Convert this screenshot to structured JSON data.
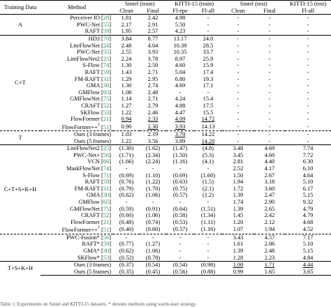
{
  "header": {
    "row1": [
      "Training Data",
      "Method",
      "Sintel (train)",
      "KITTI-15 (train)",
      "Sintel (test)",
      "KITTI-15 (test)"
    ],
    "row2": [
      "Clean",
      "Final",
      "Fl-epe",
      "Fl-all",
      "Clean",
      "Final",
      "Fl-all"
    ]
  },
  "groups": [
    {
      "name": "A",
      "rows": [
        {
          "m": "Perceiver IO",
          "c": "28",
          "v": [
            "1.81",
            "2.42",
            "4.98",
            "-",
            "-",
            "-",
            "-"
          ]
        },
        {
          "m": "PWC-Net",
          "c": "55",
          "v": [
            "2.17",
            "2.91",
            "5.50",
            "-",
            "-",
            "-",
            "-"
          ]
        },
        {
          "m": "RAFT",
          "c": "59",
          "v": [
            "1.95",
            "2.57",
            "4.23",
            "-",
            "-",
            "-",
            "-"
          ]
        }
      ]
    },
    {
      "name": "C+T",
      "rows": [
        {
          "m": "HD3",
          "c": "70",
          "v": [
            "3.84",
            "8.77",
            "13.17",
            "24.0",
            "-",
            "-",
            "-"
          ]
        },
        {
          "m": "LiteFlowNet",
          "c": "24",
          "v": [
            "2.48",
            "4.04",
            "10.39",
            "28.5",
            "-",
            "-",
            "-"
          ]
        },
        {
          "m": "PWC-Net",
          "c": "55",
          "v": [
            "2.55",
            "3.93",
            "10.35",
            "33.7",
            "-",
            "-",
            "-"
          ]
        },
        {
          "m": "LiteFlowNet2",
          "c": "25",
          "v": [
            "2.24",
            "3.78",
            "8.97",
            "25.9",
            "-",
            "-",
            "-"
          ]
        },
        {
          "m": "S-Flow",
          "c": "74",
          "v": [
            "1.30",
            "2.59",
            "4.60",
            "15.9",
            "-",
            "-",
            "-"
          ]
        },
        {
          "m": "RAFT",
          "c": "59",
          "v": [
            "1.43",
            "2.71",
            "5.04",
            "17.4",
            "-",
            "-",
            "-"
          ]
        },
        {
          "m": "FM-RAFT",
          "c": "31",
          "v": [
            "1.29",
            "2.95",
            "6.80",
            "19.3",
            "-",
            "-",
            "-"
          ]
        },
        {
          "m": "GMA",
          "c": "30",
          "v": [
            "1.30",
            "2.74",
            "4.69",
            "17.1",
            "-",
            "-",
            "-"
          ]
        },
        {
          "m": "GMFlow",
          "c": "65",
          "v": [
            "1.08",
            "2.48",
            "-",
            "-",
            "-",
            "-",
            "-"
          ]
        },
        {
          "m": "GMFlowNet",
          "c": "75",
          "v": [
            "1.14",
            "2.71",
            "4.24",
            "15.4",
            "-",
            "-",
            "-"
          ]
        },
        {
          "m": "CRAFT",
          "c": "52",
          "v": [
            "1.27",
            "2.79",
            "4.88",
            "17.5",
            "-",
            "-",
            "-"
          ]
        },
        {
          "m": "SKFlow",
          "c": "53",
          "v": [
            "1.22",
            "2.46",
            "4.47",
            "15.5",
            "-",
            "-",
            "-"
          ]
        },
        {
          "m": "FlowFormer",
          "c": "21",
          "v": [
            "0.94",
            "2.33",
            "4.09",
            "14.72",
            "-",
            "-",
            "-"
          ]
        },
        {
          "m": "FlowFormer++",
          "sup": "†",
          "c": "51",
          "v": [
            "0.90",
            "2.30",
            "3.93",
            "14.13",
            "-",
            "-",
            "-"
          ]
        }
      ]
    },
    {
      "name": "T",
      "rows": [
        {
          "m": "Ours (3 frames)",
          "c": "",
          "v": [
            "1.03",
            "2.19",
            "3.70",
            "14.22",
            "-",
            "-",
            "-"
          ]
        },
        {
          "m": "Ours (5 frames)",
          "c": "",
          "v": [
            "1.22",
            "3.56",
            "3.89",
            "14.20",
            "-",
            "-",
            "-"
          ]
        }
      ]
    },
    {
      "name": "C+T+S+K+H",
      "rows": [
        {
          "m": "LiteFlowNet2",
          "c": "25",
          "v": [
            "(1.30)",
            "(1.62)",
            "(1.47)",
            "(4.8)",
            "3.48",
            "4.69",
            "7.74"
          ]
        },
        {
          "m": "PWC-Net+",
          "c": "56",
          "v": [
            "(1.71)",
            "(2.34)",
            "(1.50)",
            "(5.3)",
            "3.45",
            "4.60",
            "7.72"
          ]
        },
        {
          "m": "VCN",
          "c": "66",
          "v": [
            "(1.66)",
            "(2.24)",
            "(1.16)",
            "(4.1)",
            "2.81",
            "4.40",
            "6.30"
          ]
        },
        {
          "m": "MaskFlowNet",
          "c": "74",
          "v": [
            "-",
            "-",
            "-",
            "-",
            "2.52",
            "4.17",
            "6.10"
          ]
        },
        {
          "m": "S-Flow",
          "c": "71",
          "v": [
            "(0.69)",
            "(1.10)",
            "(0.69)",
            "(1.60)",
            "1.50",
            "2.67",
            "4.64"
          ]
        },
        {
          "m": "RAFT",
          "c": "59",
          "v": [
            "(0.76)",
            "(1.22)",
            "(0.63)",
            "(1.5)",
            "1.94",
            "3.18",
            "5.10"
          ]
        },
        {
          "m": "FM-RAFT",
          "c": "31",
          "v": [
            "(0.79)",
            "(1.70)",
            "(0.75)",
            "(2.1)",
            "1.72",
            "3.60",
            "6.17"
          ]
        },
        {
          "m": "GMA",
          "c": "30",
          "v": [
            "(0.62)",
            "(1.06)",
            "(0.57)",
            "(1.2)",
            "1.39",
            "2.47",
            "5.15"
          ]
        },
        {
          "m": "GMFlow",
          "c": "65",
          "v": [
            "-",
            "-",
            "-",
            "-",
            "1.74",
            "2.90",
            "9.32"
          ]
        },
        {
          "m": "GMFlowNet",
          "c": "75",
          "v": [
            "(0.59)",
            "(0.91)",
            "(0.64)",
            "(1.51)",
            "1.39",
            "2.65",
            "4.79"
          ]
        },
        {
          "m": "CRAFT",
          "c": "52",
          "v": [
            "(0.60)",
            "(1.06)",
            "(0.58)",
            "(1.34)",
            "1.45",
            "2.42",
            "4.79"
          ]
        },
        {
          "m": "FlowFormer",
          "c": "21",
          "v": [
            "(0.48)",
            "(0.74)",
            "(0.53)",
            "(1.11)",
            "1.20",
            "2.12",
            "4.68"
          ]
        },
        {
          "m": "FlowFormer++",
          "sup": "†",
          "c": "51",
          "v": [
            "(0.40)",
            "(0.60)",
            "(0.57)",
            "(1.16)",
            "1.07",
            "1.94",
            "4.52"
          ]
        }
      ]
    },
    {
      "name": "",
      "rows": [
        {
          "m": "PWC-Fusion*",
          "c": "56",
          "v": [
            "-",
            "-",
            "-",
            "-",
            "3.43",
            "4.57",
            "7.17"
          ]
        },
        {
          "m": "RAFT*",
          "c": "59",
          "v": [
            "(0.77)",
            "(1.27)",
            "-",
            "-",
            "1.61",
            "2.86",
            "5.10"
          ]
        },
        {
          "m": "GMA*",
          "c": "30",
          "v": [
            "(0.62)",
            "(1.06)",
            "-",
            "-",
            "1.39",
            "2.48",
            "5.15"
          ]
        },
        {
          "m": "SKFlow*",
          "c": "53",
          "v": [
            "(0.52)",
            "(0.78)",
            "-",
            "-",
            "1.28",
            "2.23",
            "4.84"
          ]
        }
      ]
    },
    {
      "name": "T+S+K+H",
      "rows": [
        {
          "m": "Ours (3 frames)",
          "c": "",
          "v": [
            "(0.37)",
            "(0.54)",
            "(0.54)",
            "(0.98)",
            "1.00",
            "1.71",
            "4.44"
          ]
        },
        {
          "m": "Ours (5 frames)",
          "c": "",
          "v": [
            "(0.35)",
            "(0.45)",
            "(0.56)",
            "(0.88)",
            "0.99",
            "1.65",
            "3.65"
          ]
        }
      ]
    }
  ],
  "caption": "Table 1: Experiments on Sintel and KITTI-15 datasets. * denotes methods using warm-start strategy."
}
